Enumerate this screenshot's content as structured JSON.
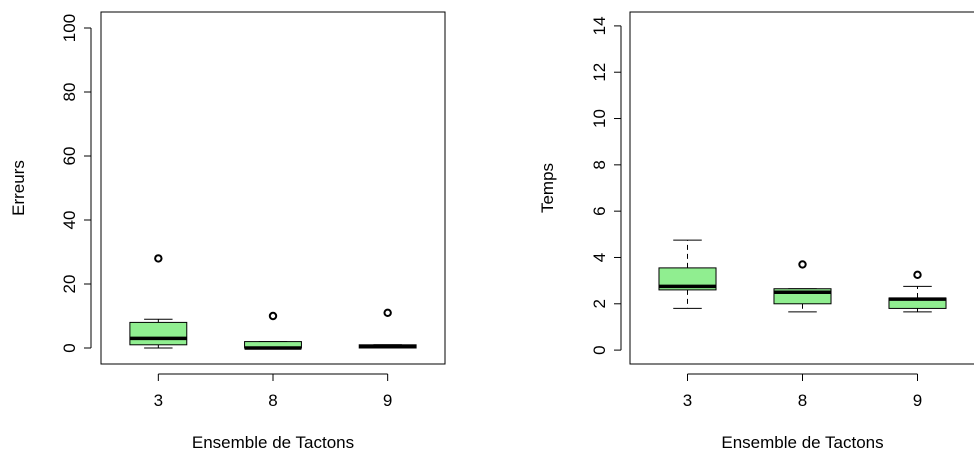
{
  "chart_data": [
    {
      "type": "boxplot",
      "xlabel": "Ensemble de Tactons",
      "ylabel": "Erreurs",
      "ylim": [
        -5,
        105
      ],
      "yticks": [
        0,
        20,
        40,
        60,
        80,
        100
      ],
      "categories": [
        "3",
        "8",
        "9"
      ],
      "box_color": "#90ee90",
      "boxes": [
        {
          "category": "3",
          "whisker_low": 0,
          "q1": 1,
          "median": 3,
          "q3": 8,
          "whisker_high": 9,
          "outliers": [
            28
          ]
        },
        {
          "category": "8",
          "whisker_low": 0,
          "q1": 0,
          "median": 0,
          "q3": 2,
          "whisker_high": 2,
          "outliers": [
            10
          ]
        },
        {
          "category": "9",
          "whisker_low": 0,
          "q1": 0,
          "median": 0.5,
          "q3": 1,
          "whisker_high": 1,
          "outliers": [
            11
          ]
        }
      ]
    },
    {
      "type": "boxplot",
      "xlabel": "Ensemble de Tactons",
      "ylabel": "Temps",
      "ylim": [
        -0.6,
        14.6
      ],
      "yticks": [
        0,
        2,
        4,
        6,
        8,
        10,
        12,
        14
      ],
      "categories": [
        "3",
        "8",
        "9"
      ],
      "box_color": "#90ee90",
      "boxes": [
        {
          "category": "3",
          "whisker_low": 1.8,
          "q1": 2.6,
          "median": 2.75,
          "q3": 3.55,
          "whisker_high": 4.75,
          "outliers": []
        },
        {
          "category": "8",
          "whisker_low": 1.65,
          "q1": 2.0,
          "median": 2.5,
          "q3": 2.65,
          "whisker_high": 2.65,
          "outliers": [
            3.7
          ]
        },
        {
          "category": "9",
          "whisker_low": 1.65,
          "q1": 1.8,
          "median": 2.2,
          "q3": 2.25,
          "whisker_high": 2.75,
          "outliers": [
            3.25
          ]
        }
      ]
    }
  ]
}
